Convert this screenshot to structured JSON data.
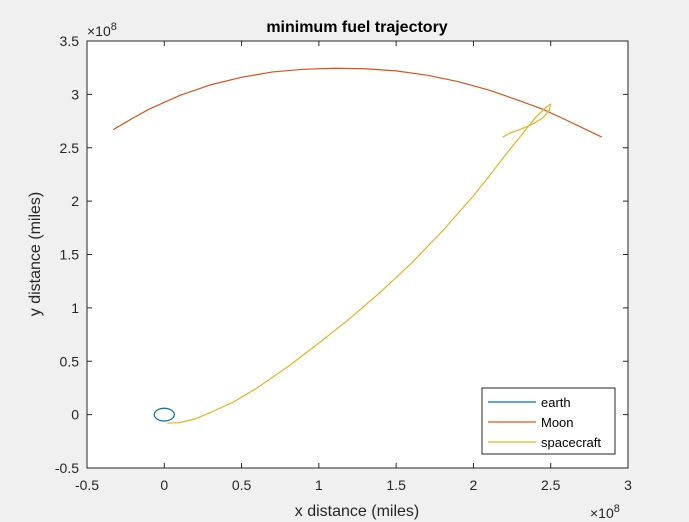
{
  "chart_data": {
    "type": "line",
    "title": "minimum fuel trajectory",
    "xlabel": "x distance (miles)",
    "ylabel": "y distance (miles)",
    "xlim": [
      -0.5,
      3
    ],
    "ylim": [
      -0.5,
      3.5
    ],
    "x_exponent": "×10",
    "x_exponent_power": "8",
    "y_exponent": "×10",
    "y_exponent_power": "8",
    "xticks": [
      -0.5,
      0,
      0.5,
      1,
      1.5,
      2,
      2.5,
      3
    ],
    "xtick_labels": [
      "-0.5",
      "0",
      "0.5",
      "1",
      "1.5",
      "2",
      "2.5",
      "3"
    ],
    "yticks": [
      -0.5,
      0,
      0.5,
      1,
      1.5,
      2,
      2.5,
      3,
      3.5
    ],
    "ytick_labels": [
      "-0.5",
      "0",
      "0.5",
      "1",
      "1.5",
      "2",
      "2.5",
      "3",
      "3.5"
    ],
    "grid": false,
    "legend_position": "bottom-right",
    "series": [
      {
        "name": "earth",
        "color": "#0072bd",
        "shape": "ellipse",
        "center": [
          0,
          0
        ],
        "radius_x": 0.065,
        "radius_y": 0.06
      },
      {
        "name": "Moon",
        "color": "#d95319",
        "x": [
          -0.33,
          -0.2,
          -0.1,
          0.1,
          0.3,
          0.5,
          0.7,
          0.9,
          1.1,
          1.3,
          1.5,
          1.7,
          1.9,
          2.1,
          2.3,
          2.45,
          2.6,
          2.7,
          2.83
        ],
        "y": [
          2.67,
          2.78,
          2.86,
          2.99,
          3.09,
          3.16,
          3.21,
          3.235,
          3.245,
          3.24,
          3.22,
          3.18,
          3.12,
          3.04,
          2.94,
          2.86,
          2.76,
          2.69,
          2.6
        ]
      },
      {
        "name": "spacecraft",
        "color": "#edb120",
        "x": [
          0.02,
          0.1,
          0.2,
          0.3,
          0.45,
          0.6,
          0.8,
          1.0,
          1.2,
          1.4,
          1.6,
          1.8,
          2.0,
          2.1,
          2.2,
          2.3,
          2.4,
          2.47,
          2.5,
          2.49,
          2.45,
          2.38,
          2.3,
          2.24,
          2.19
        ],
        "y": [
          -0.08,
          -0.075,
          -0.04,
          0.02,
          0.12,
          0.25,
          0.45,
          0.67,
          0.9,
          1.15,
          1.42,
          1.72,
          2.05,
          2.23,
          2.42,
          2.6,
          2.78,
          2.88,
          2.91,
          2.85,
          2.78,
          2.72,
          2.67,
          2.64,
          2.6
        ]
      }
    ]
  }
}
